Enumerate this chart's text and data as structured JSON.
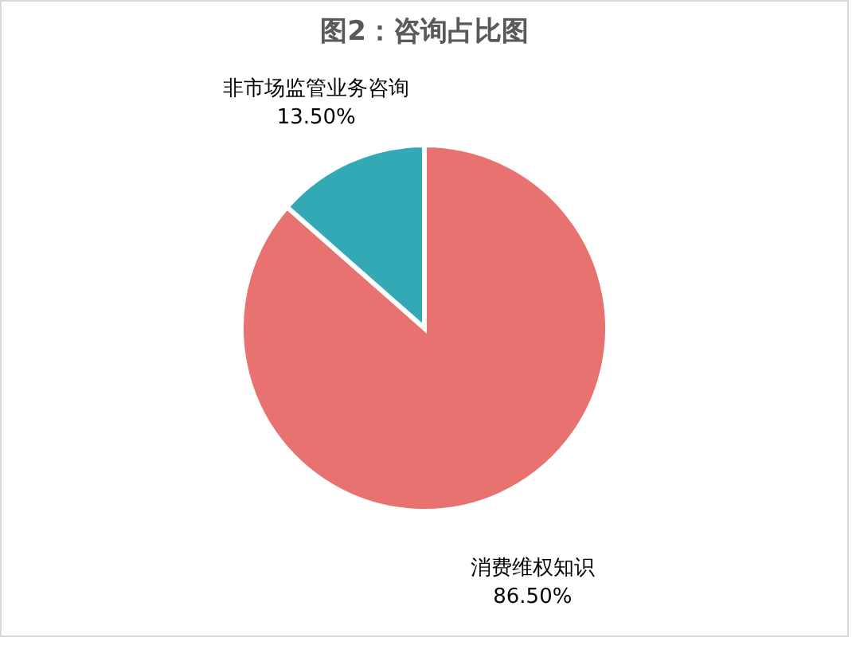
{
  "chart_data": {
    "type": "pie",
    "title": "图2：咨询占比图",
    "categories": [
      "消费维权知识",
      "非市场监管业务咨询"
    ],
    "values": [
      86.5,
      13.5
    ],
    "colors": [
      "#e8726f",
      "#33a9b5"
    ],
    "value_labels": [
      "86.50%",
      "13.50%"
    ]
  }
}
